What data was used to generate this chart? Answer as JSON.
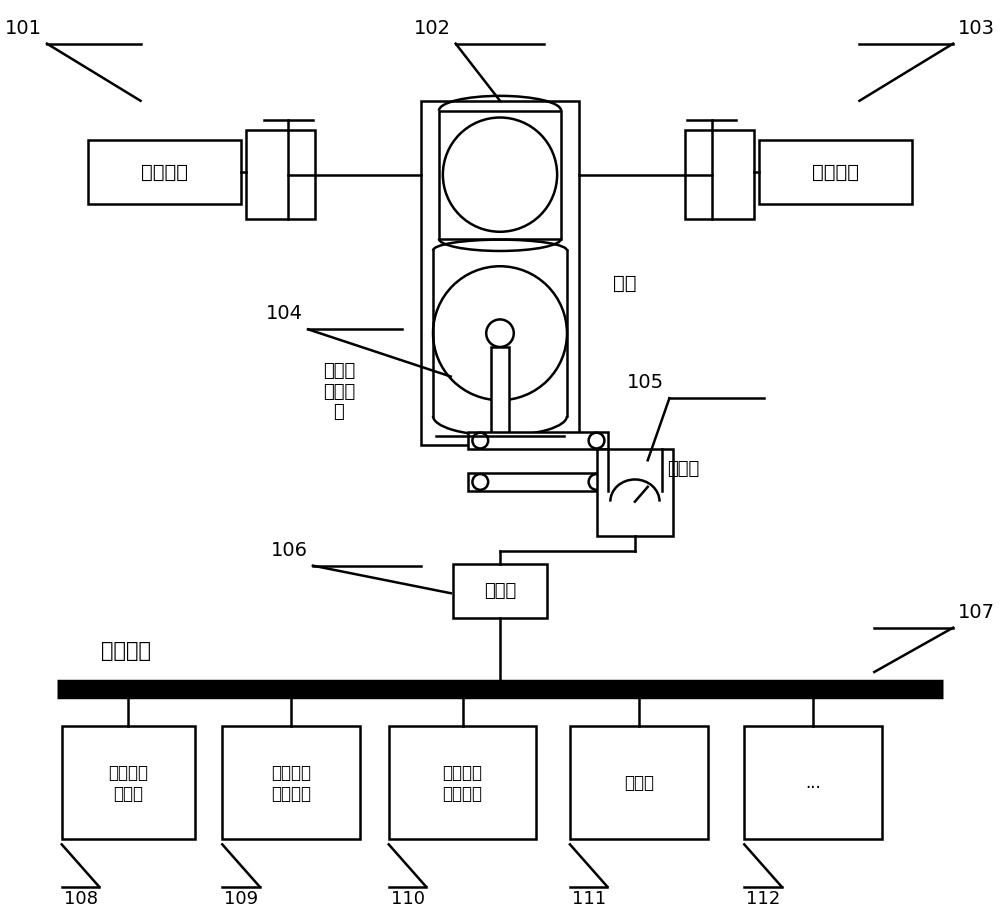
{
  "bg_color": "#ffffff",
  "line_color": "#000000",
  "labels": {
    "101": "101",
    "102": "102",
    "103": "103",
    "104": "104",
    "105": "105",
    "106": "106",
    "107": "107",
    "108": "108",
    "109": "109",
    "110": "110",
    "111": "111",
    "112": "112"
  },
  "box_texts": {
    "left_cylinder": "舵机油缸",
    "right_cylinder": "舵机油缸",
    "junction": "接线筱",
    "b108": "三面舵角\n指示器",
    "b109": "嵌入式舵\n角指示器",
    "b110": "壁挂式舵\n角指示器",
    "b111": "调光器",
    "b112": "..."
  },
  "text_labels": {
    "duoji": "舵机",
    "pingxingsi": "平行四\n边形连\n杆",
    "fasongqi": "发送器",
    "xianchang": "现场总线"
  },
  "figsize": [
    10.0,
    9.17
  ],
  "dpi": 100
}
